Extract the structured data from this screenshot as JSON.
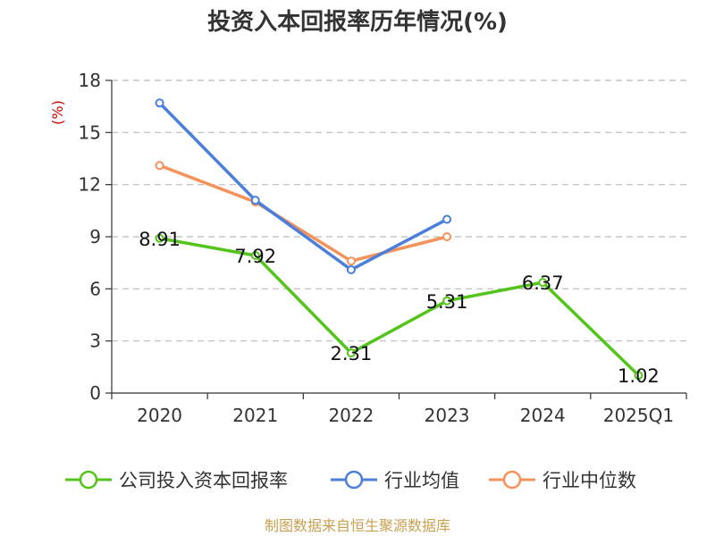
{
  "chart_data": {
    "type": "line",
    "title": "投资入本回报率历年情况(%)",
    "ylabel": "(%)",
    "xlabel": "",
    "categories": [
      "2020",
      "2021",
      "2022",
      "2023",
      "2024",
      "2025Q1"
    ],
    "ylim": [
      0,
      18
    ],
    "yticks": [
      0,
      3,
      6,
      9,
      12,
      15,
      18
    ],
    "grid": true,
    "legend_position": "bottom",
    "series": [
      {
        "name": "公司投入资本回报率",
        "color": "#52c41a",
        "values": [
          8.91,
          7.92,
          2.31,
          5.31,
          6.37,
          1.02
        ],
        "labels": [
          "8.91",
          "7.92",
          "2.31",
          "5.31",
          "6.37",
          "1.02"
        ]
      },
      {
        "name": "行业均值",
        "color": "#4a7fdb",
        "values": [
          16.7,
          11.1,
          7.1,
          10.0,
          null,
          null
        ]
      },
      {
        "name": "行业中位数",
        "color": "#f5915a",
        "values": [
          13.1,
          11.0,
          7.6,
          9.0,
          null,
          null
        ]
      }
    ]
  },
  "footer": {
    "source": "制图数据来自恒生聚源数据库"
  },
  "colors": {
    "axis": "#333333",
    "grid": "#bbbbbb",
    "unit": "#cc0000",
    "source": "#c8a050"
  }
}
